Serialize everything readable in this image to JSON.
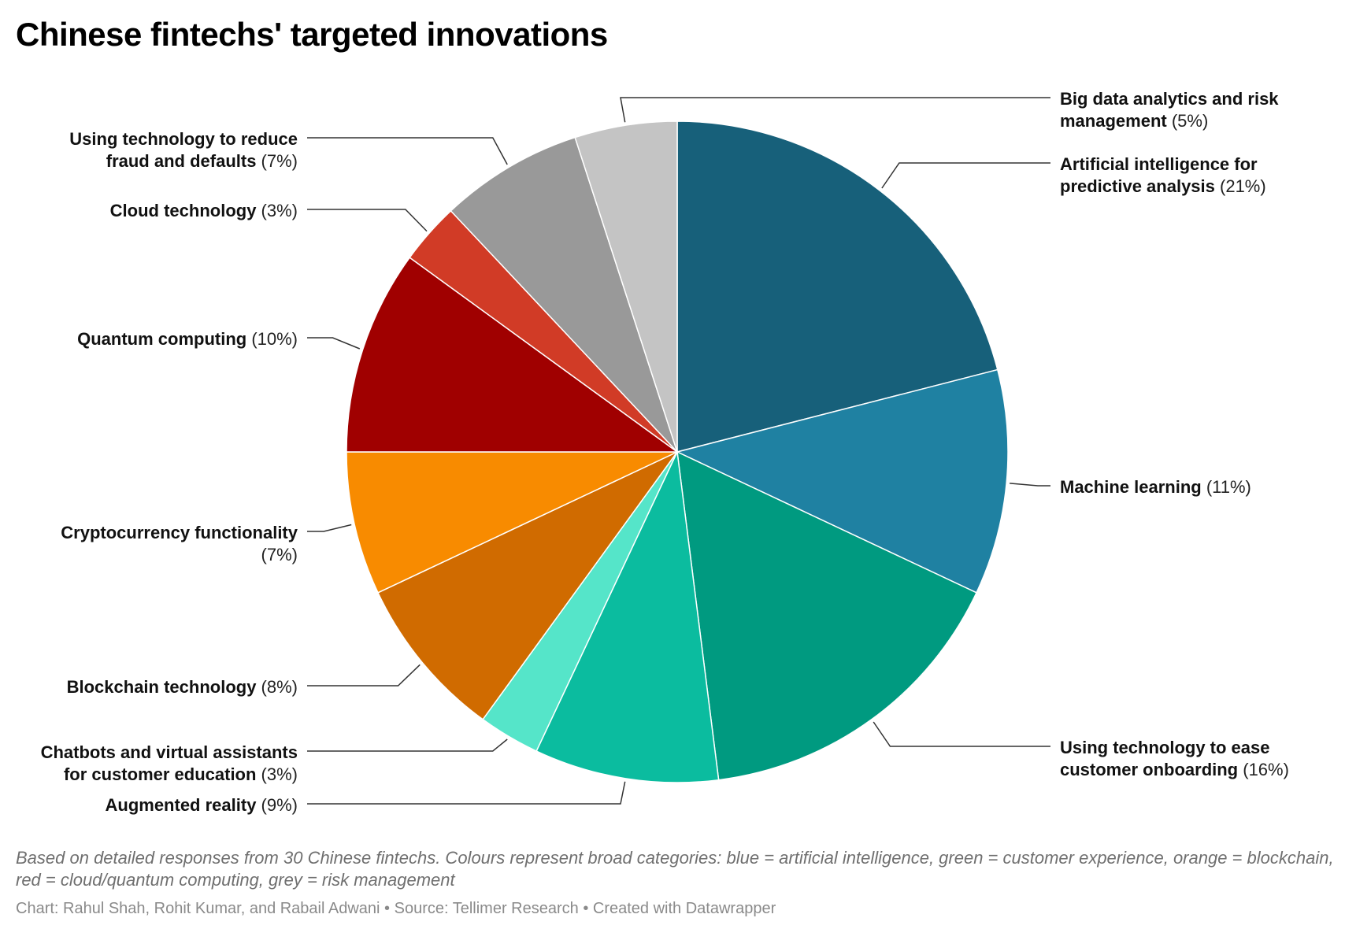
{
  "chart_data": {
    "type": "pie",
    "title": "Chinese fintechs' targeted innovations",
    "unit": "%",
    "slices": [
      {
        "label": "Artificial intelligence for predictive analysis",
        "value": 21,
        "color": "#17607a",
        "label_lines": [
          "Artificial intelligence for",
          "predictive analysis"
        ],
        "side": "right"
      },
      {
        "label": "Machine learning",
        "value": 11,
        "color": "#1f81a2",
        "label_lines": [
          "Machine learning"
        ],
        "side": "right"
      },
      {
        "label": "Using technology to ease customer onboarding",
        "value": 16,
        "color": "#009a80",
        "label_lines": [
          "Using technology to ease",
          "customer onboarding"
        ],
        "side": "right"
      },
      {
        "label": "Augmented reality",
        "value": 9,
        "color": "#0bbc9f",
        "label_lines": [
          "Augmented reality"
        ],
        "side": "left"
      },
      {
        "label": "Chatbots and virtual assistants for customer education",
        "value": 3,
        "color": "#55e5c9",
        "label_lines": [
          "Chatbots and virtual assistants",
          "for customer education"
        ],
        "side": "left"
      },
      {
        "label": "Blockchain technology",
        "value": 8,
        "color": "#d06b00",
        "label_lines": [
          "Blockchain technology"
        ],
        "side": "left"
      },
      {
        "label": "Cryptocurrency functionality",
        "value": 7,
        "color": "#f88b00",
        "label_lines": [
          "Cryptocurrency functionality",
          ""
        ],
        "side": "left"
      },
      {
        "label": "Quantum computing",
        "value": 10,
        "color": "#a00000",
        "label_lines": [
          "Quantum computing"
        ],
        "side": "left"
      },
      {
        "label": "Cloud technology",
        "value": 3,
        "color": "#d13b26",
        "label_lines": [
          "Cloud technology"
        ],
        "side": "left"
      },
      {
        "label": "Using technology to reduce fraud and defaults",
        "value": 7,
        "color": "#999999",
        "label_lines": [
          "Using technology to reduce",
          "fraud and defaults"
        ],
        "side": "left"
      },
      {
        "label": "Big data analytics and risk management",
        "value": 5,
        "color": "#c4c4c4",
        "label_lines": [
          "Big data analytics and risk",
          "management"
        ],
        "side": "right"
      }
    ]
  },
  "notes": "Based on detailed responses from 30 Chinese fintechs. Colours represent broad categories: blue = artificial intelligence, green = customer experience, orange = blockchain, red = cloud/quantum computing, grey = risk management",
  "credits": "Chart: Rahul Shah, Rohit Kumar, and Rabail Adwani • Source: Tellimer Research • Created with Datawrapper"
}
